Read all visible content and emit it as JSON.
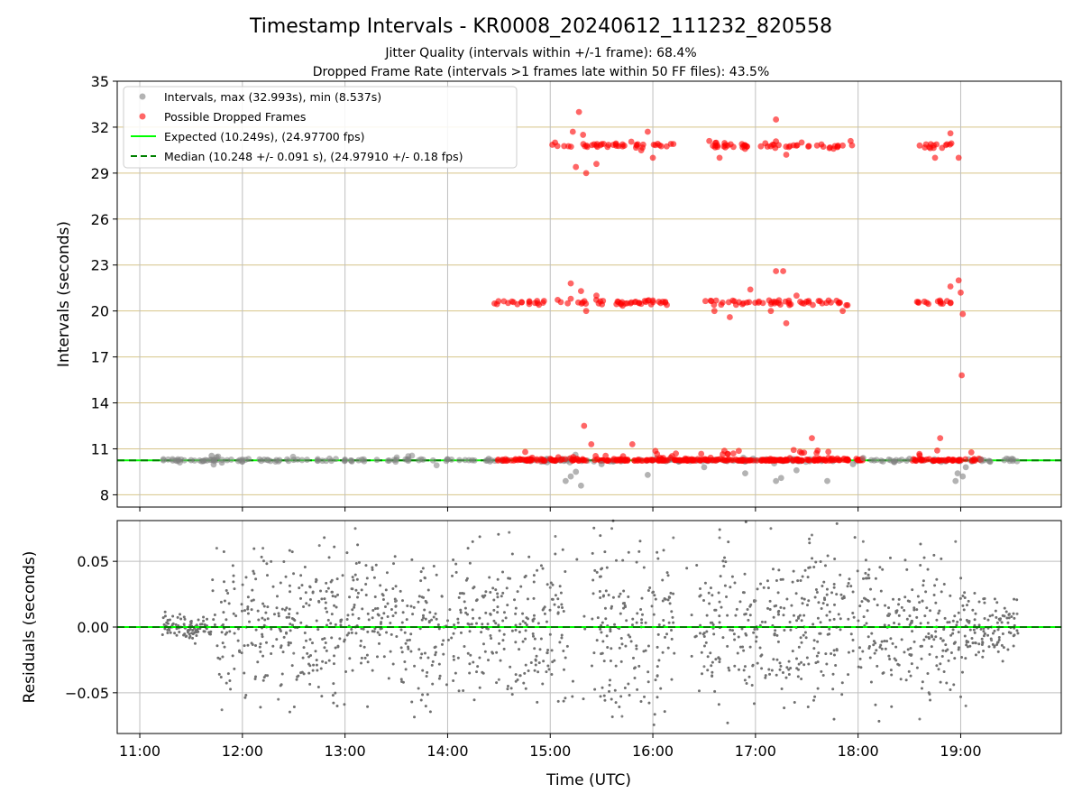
{
  "chart_data": [
    {
      "type": "scatter",
      "title": "Timestamp Intervals - KR0008_20240612_111232_820558",
      "subtitle_lines": [
        "Jitter Quality (intervals within +/-1 frame): 68.4%",
        "Dropped Frame Rate (intervals >1 frames late within 50 FF files): 43.5%"
      ],
      "ylabel": "Intervals (seconds)",
      "xlabel": "",
      "xlim_hours": [
        10.78,
        19.98
      ],
      "ylim": [
        7.2,
        35
      ],
      "yticks": [
        8,
        11,
        14,
        17,
        20,
        23,
        26,
        29,
        32,
        35
      ],
      "ytick_labels": [
        "8",
        "11",
        "14",
        "17",
        "20",
        "23",
        "26",
        "29",
        "32",
        "35"
      ],
      "xticks_hours": [
        11,
        12,
        13,
        14,
        15,
        16,
        17,
        18,
        19
      ],
      "grid": true,
      "legend_position": "upper-left",
      "legend": [
        "Intervals, max (32.993s), min (8.537s)",
        "Possible Dropped Frames",
        "Expected (10.249s), (24.97700 fps)",
        "Median (10.248 +/- 0.091 s), (24.97910 +/- 0.18 fps)"
      ],
      "series": [
        {
          "name": "Intervals, max (32.993s), min (8.537s)",
          "color": "#808080",
          "points": [
            [
              11.23,
              10.25
            ],
            [
              11.35,
              10.24
            ],
            [
              11.5,
              10.26
            ],
            [
              11.62,
              10.22
            ],
            [
              11.7,
              10.55
            ],
            [
              11.72,
              9.98
            ],
            [
              11.75,
              10.45
            ],
            [
              11.8,
              10.1
            ],
            [
              12.0,
              10.3
            ],
            [
              12.5,
              10.28
            ],
            [
              13.0,
              10.3
            ],
            [
              13.5,
              10.3
            ],
            [
              14.0,
              10.32
            ],
            [
              14.4,
              10.35
            ],
            [
              15.15,
              8.9
            ],
            [
              15.2,
              9.2
            ],
            [
              15.3,
              8.6
            ],
            [
              15.25,
              9.5
            ],
            [
              15.5,
              10.0
            ],
            [
              15.95,
              9.3
            ],
            [
              16.5,
              9.8
            ],
            [
              16.9,
              9.4
            ],
            [
              17.2,
              8.9
            ],
            [
              17.25,
              9.1
            ],
            [
              17.4,
              9.6
            ],
            [
              17.7,
              8.9
            ],
            [
              17.95,
              10.0
            ],
            [
              18.05,
              10.4
            ],
            [
              18.3,
              10.3
            ],
            [
              18.5,
              10.35
            ],
            [
              18.95,
              8.9
            ],
            [
              18.97,
              9.4
            ],
            [
              19.02,
              9.2
            ],
            [
              19.05,
              9.8
            ],
            [
              19.2,
              10.3
            ],
            [
              19.5,
              10.35
            ]
          ]
        },
        {
          "name": "Possible Dropped Frames",
          "color": "#ff0000",
          "points": [
            [
              15.22,
              31.7
            ],
            [
              15.28,
              32.99
            ],
            [
              15.32,
              31.5
            ],
            [
              15.25,
              29.4
            ],
            [
              15.35,
              29.0
            ],
            [
              15.45,
              29.6
            ],
            [
              15.95,
              31.7
            ],
            [
              16.0,
              30.0
            ],
            [
              16.2,
              30.9
            ],
            [
              16.55,
              31.1
            ],
            [
              16.65,
              30.0
            ],
            [
              16.9,
              30.8
            ],
            [
              17.2,
              32.5
            ],
            [
              17.3,
              30.2
            ],
            [
              17.45,
              31.0
            ],
            [
              17.6,
              30.8
            ],
            [
              17.85,
              30.8
            ],
            [
              18.6,
              30.8
            ],
            [
              18.75,
              30.0
            ],
            [
              18.9,
              31.6
            ],
            [
              18.98,
              30.0
            ],
            [
              15.2,
              20.8
            ],
            [
              15.3,
              21.3
            ],
            [
              15.35,
              20.0
            ],
            [
              15.45,
              21.0
            ],
            [
              15.2,
              21.8
            ],
            [
              16.6,
              20.0
            ],
            [
              16.75,
              19.6
            ],
            [
              16.95,
              21.4
            ],
            [
              17.15,
              20.0
            ],
            [
              17.2,
              22.6
            ],
            [
              17.27,
              22.6
            ],
            [
              17.3,
              19.2
            ],
            [
              17.4,
              21.0
            ],
            [
              17.85,
              20.0
            ],
            [
              18.9,
              21.6
            ],
            [
              18.98,
              22.0
            ],
            [
              19.0,
              21.2
            ],
            [
              19.02,
              19.8
            ],
            [
              19.01,
              15.8
            ],
            [
              15.33,
              12.5
            ],
            [
              15.4,
              11.3
            ],
            [
              15.8,
              11.3
            ],
            [
              17.55,
              11.7
            ],
            [
              18.8,
              11.7
            ]
          ]
        }
      ],
      "expected_line": {
        "name": "Expected (10.249s), (24.97700 fps)",
        "y": 10.249,
        "color": "#00ff00"
      },
      "median_line": {
        "name": "Median (10.248 +/- 0.091 s), (24.97910 +/- 0.18 fps)",
        "y": 10.248,
        "color": "#008000"
      }
    },
    {
      "type": "scatter",
      "ylabel": "Residuals (seconds)",
      "xlabel": "Time (UTC)",
      "xlim_hours": [
        10.78,
        19.98
      ],
      "ylim": [
        -0.081,
        0.081
      ],
      "yticks": [
        -0.05,
        0.0,
        0.05
      ],
      "ytick_labels": [
        "−0.05",
        "0.00",
        "0.05"
      ],
      "xticks_hours": [
        11,
        12,
        13,
        14,
        15,
        16,
        17,
        18,
        19
      ],
      "xtick_labels": [
        "11:00",
        "12:00",
        "13:00",
        "14:00",
        "15:00",
        "16:00",
        "17:00",
        "18:00",
        "19:00"
      ],
      "grid": true,
      "series": [
        {
          "name": "",
          "color": "#808080",
          "points": [
            [
              11.75,
              0.06
            ],
            [
              11.8,
              -0.063
            ],
            [
              12.2,
              0.06
            ],
            [
              12.35,
              -0.055
            ],
            [
              12.75,
              0.062
            ],
            [
              13.1,
              0.075
            ],
            [
              14.6,
              0.072
            ],
            [
              15.05,
              0.069
            ],
            [
              15.6,
              0.075
            ],
            [
              15.7,
              -0.068
            ],
            [
              16.2,
              0.068
            ],
            [
              16.65,
              0.068
            ],
            [
              17.15,
              0.075
            ],
            [
              17.55,
              0.07
            ],
            [
              18.05,
              0.065
            ],
            [
              18.6,
              -0.07
            ],
            [
              18.95,
              0.065
            ],
            [
              19.05,
              -0.06
            ],
            [
              19.55,
              0.01
            ],
            [
              11.4,
              0.0
            ],
            [
              12.5,
              -0.02
            ],
            [
              13.5,
              0.02
            ],
            [
              14.5,
              -0.04
            ],
            [
              15.0,
              0.03
            ],
            [
              16.5,
              -0.03
            ],
            [
              17.0,
              0.02
            ],
            [
              18.3,
              0.01
            ],
            [
              19.3,
              -0.01
            ]
          ]
        }
      ],
      "zero_line": {
        "y": 0.0,
        "color": "#00ff00"
      }
    }
  ]
}
